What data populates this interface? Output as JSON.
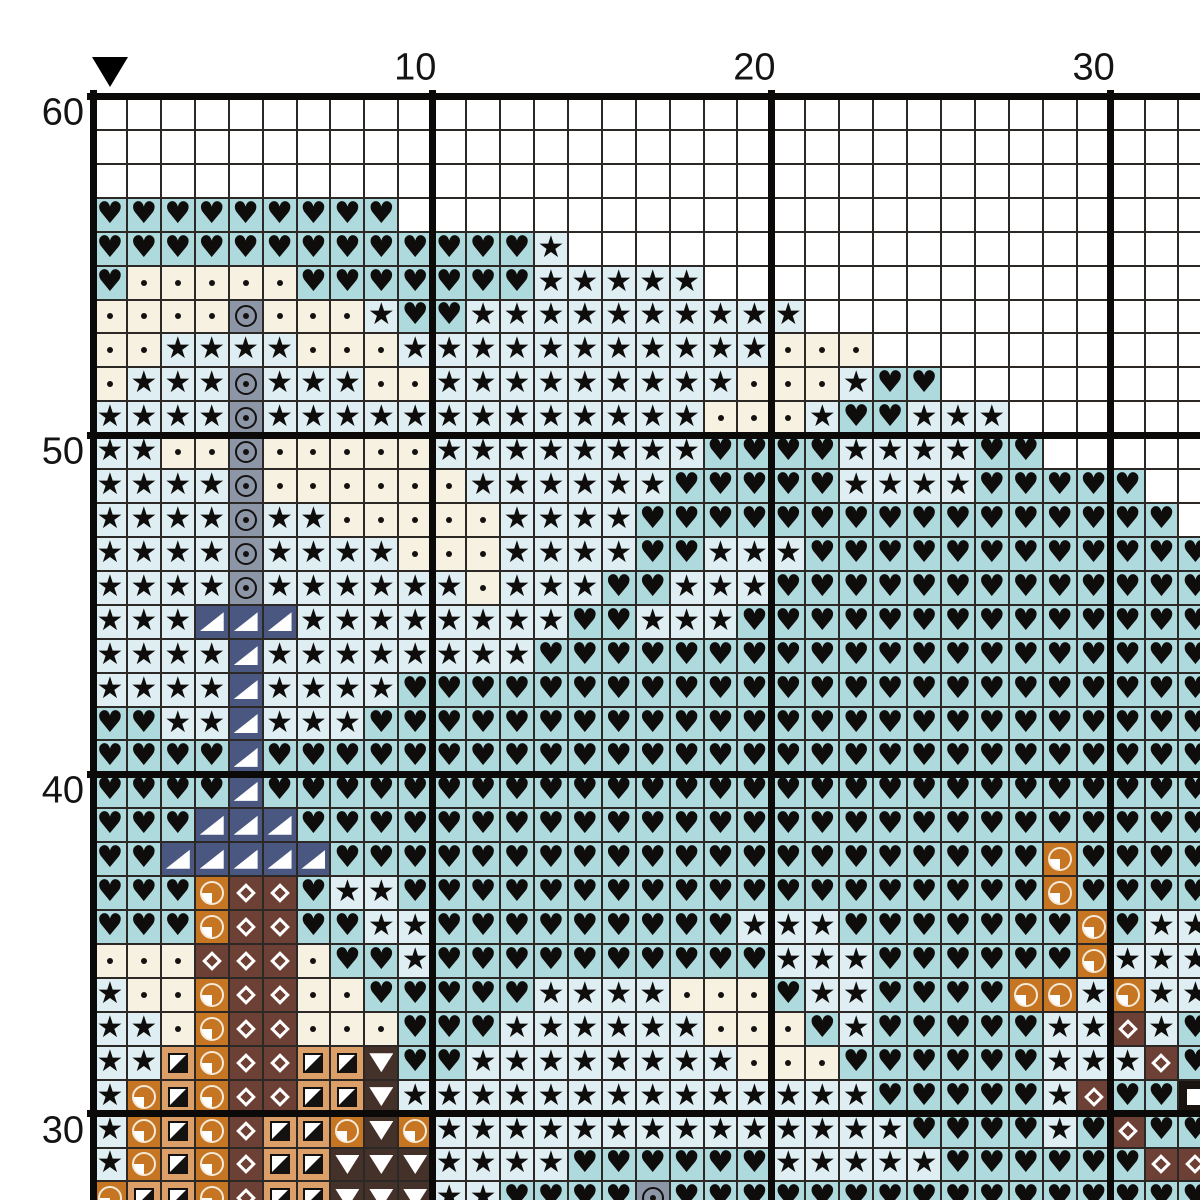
{
  "pattern": {
    "marker_icon": "down-arrow-marker",
    "axis": {
      "top_labels": [
        {
          "text": "10",
          "col": 10
        },
        {
          "text": "20",
          "col": 20
        },
        {
          "text": "30",
          "col": 30
        }
      ],
      "left_labels": [
        {
          "text": "60",
          "row": 60
        },
        {
          "text": "50",
          "row": 50
        },
        {
          "text": "40",
          "row": 40
        },
        {
          "text": "30",
          "row": 30
        }
      ]
    },
    "grid": {
      "first_row": 60,
      "last_row": 28,
      "first_col": 1,
      "last_col": 33
    },
    "palette": [
      {
        "key": ".",
        "name": "empty",
        "bg": "#ffffff",
        "symbol": "none"
      },
      {
        "key": "H",
        "name": "heart-stitch",
        "bg": "#aedadd",
        "symbol": "heart",
        "glyph": "♥"
      },
      {
        "key": "S",
        "name": "star-stitch",
        "bg": "#dfeef2",
        "symbol": "star",
        "glyph": "★"
      },
      {
        "key": "d",
        "name": "dot-stitch",
        "bg": "#f6f1e1",
        "symbol": "dot"
      },
      {
        "key": "G",
        "name": "circle-dot-stitch",
        "bg": "#8d96a6",
        "symbol": "circle-dot"
      },
      {
        "key": "N",
        "name": "corner-triangle-stitch",
        "bg": "#4a5781",
        "symbol": "corner-triangle"
      },
      {
        "key": "O",
        "name": "quarter-circle-stitch",
        "bg": "#c67522",
        "symbol": "quarter-circle"
      },
      {
        "key": "T",
        "name": "diagonal-square-stitch",
        "bg": "#dc9f68",
        "symbol": "diagonal-square"
      },
      {
        "key": "B",
        "name": "diamond-stitch",
        "bg": "#6d4035",
        "symbol": "diamond"
      },
      {
        "key": "D",
        "name": "down-triangle-stitch",
        "bg": "#44312a",
        "symbol": "down-triangle"
      },
      {
        "key": "K",
        "name": "white-square-stitch",
        "bg": "#191410",
        "symbol": "white-square"
      }
    ],
    "rows": [
      {
        "row": 60,
        "cells": "................................."
      },
      {
        "row": 59,
        "cells": "................................."
      },
      {
        "row": 58,
        "cells": "................................."
      },
      {
        "row": 57,
        "cells": "HHHHHHHHH........................"
      },
      {
        "row": 56,
        "cells": "HHHHHHHHHHHHHS..................."
      },
      {
        "row": 55,
        "cells": "HdddddHHHHHHHSSSSS..............."
      },
      {
        "row": 54,
        "cells": "ddddGdddSHHSSSSSSSSSS............"
      },
      {
        "row": 53,
        "cells": "ddSSSSdddSSSSSSSSSSSddd.........."
      },
      {
        "row": 52,
        "cells": "dSSSGSSSddSSSSSSSSSdddSHH........"
      },
      {
        "row": 51,
        "cells": "SSSSGSSSSSSSSSSSSSdddSHHSSS......"
      },
      {
        "row": 50,
        "cells": "SSddGdddddSSSSSSSSHHHHSSSSHH....."
      },
      {
        "row": 49,
        "cells": "SSSSGddddddSSSSSSHHHHHSSSSHHHHH.."
      },
      {
        "row": 48,
        "cells": "SSSSGSSdddddSSSSHHHHHHHHHHHHHHHH."
      },
      {
        "row": 47,
        "cells": "SSSSGSSSSdddSSSSHHSSSHHHHHHHHHHHH"
      },
      {
        "row": 46,
        "cells": "SSSSGSSSSSSdSSSHHSSSHHHHHHHHHHHHH"
      },
      {
        "row": 45,
        "cells": "SSSNNNSSSSSSSSHHSSSHHHHHHHHHHHHHH"
      },
      {
        "row": 44,
        "cells": "SSSSNSSSSSSSSHHHHHHHHHHHHHHHHHHHH"
      },
      {
        "row": 43,
        "cells": "SSSSNSSSSHHHHHHHHHHHHHHHHHHHHHHHH"
      },
      {
        "row": 42,
        "cells": "HHSSNSSSHHHHHHHHHHHHHHHHHHHHHHHHH"
      },
      {
        "row": 41,
        "cells": "HHHHNHHHHHHHHHHHHHHHHHHHHHHHHHHHH"
      },
      {
        "row": 40,
        "cells": "HHHHNHHHHHHHHHHHHHHHHHHHHHHHHHHHH"
      },
      {
        "row": 39,
        "cells": "HHHNNNHHHHHHHHHHHHHHHHHHHHHHHHHHH"
      },
      {
        "row": 38,
        "cells": "HHNNNNNHHHHHHHHHHHHHHHHHHHHHOHHHH"
      },
      {
        "row": 37,
        "cells": "HHHOBBHSSHHHHHHHHHHHHHHHHHHHOHHHH"
      },
      {
        "row": 36,
        "cells": "HHHOBBHHSSHHHHHHHHHSSSHHHHHHHOHSS"
      },
      {
        "row": 35,
        "cells": "dddBBBdHHSHHHHHHHHHHSSSHHHHHHOSSS"
      },
      {
        "row": 34,
        "cells": "SddOBBddHHHHHSSSSdddHSSHHHHOOSOSS"
      },
      {
        "row": 33,
        "cells": "SSdOBBdddHHHSSSSSSdddHSHHHHHSSBSH"
      },
      {
        "row": 32,
        "cells": "SSTOBBTTDHHSSSSSSSSdddHHHHHHSSSBH"
      },
      {
        "row": 31,
        "cells": "SOTOBBTTDSSSSSSSSSSSSSSHHHHHSBHHK"
      },
      {
        "row": 30,
        "cells": "SOTOBTTODOSSSSSSSSSSSSSSHHHHSHBHH"
      },
      {
        "row": 29,
        "cells": "SOTOBTTDDDSSSSHHHHHHSSSSSHHHHHHBB"
      },
      {
        "row": 28,
        "cells": "OTTOBTTDDDSSHHHHGHHHHHHHHHHHHHHHH"
      }
    ]
  }
}
